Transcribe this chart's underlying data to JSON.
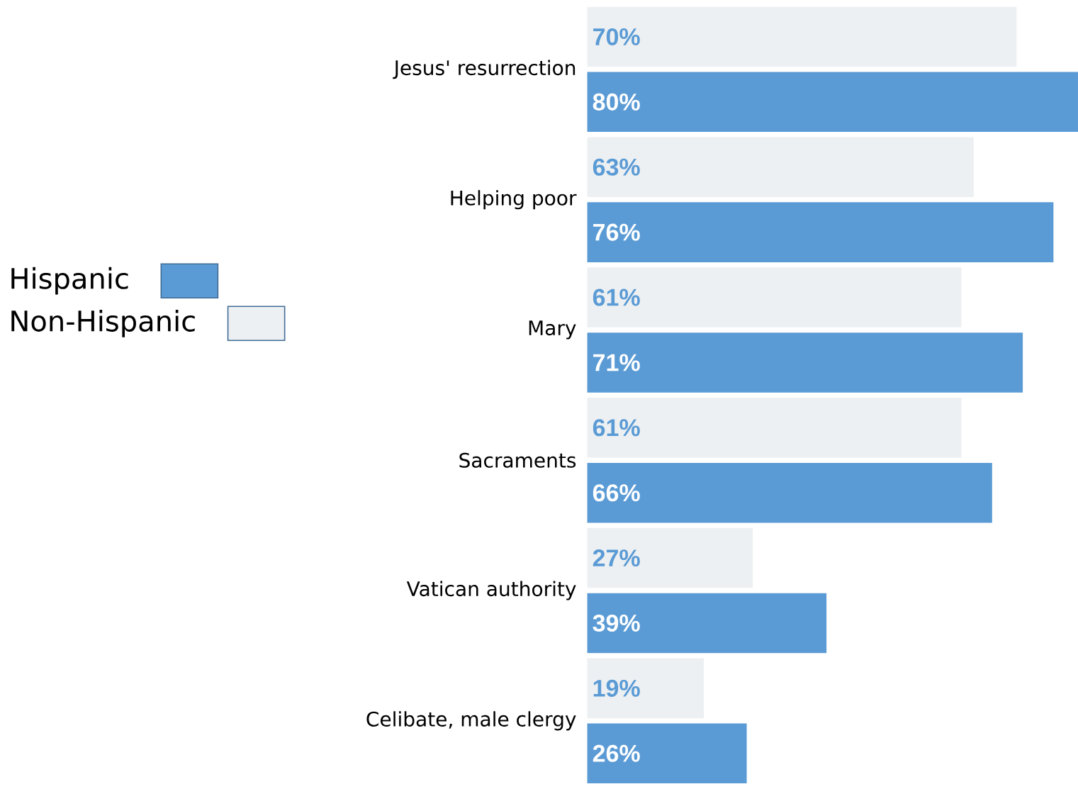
{
  "chart_data": {
    "type": "bar",
    "orientation": "horizontal",
    "categories": [
      "Jesus' resurrection",
      "Helping poor",
      "Mary",
      "Sacraments",
      "Vatican authority",
      "Celibate, male clergy"
    ],
    "series": [
      {
        "name": "Hispanic",
        "color": "#5b9bd5",
        "values": [
          80,
          76,
          71,
          66,
          39,
          26
        ],
        "value_labels": [
          "80%",
          "76%",
          "71%",
          "66%",
          "39%",
          "26%"
        ]
      },
      {
        "name": "Non-Hispanic",
        "color": "#edf0f2",
        "values": [
          70,
          63,
          61,
          61,
          27,
          19
        ],
        "value_labels": [
          "70%",
          "63%",
          "61%",
          "61%",
          "27%",
          "19%"
        ]
      }
    ],
    "legend": "left",
    "tick_labels": "y"
  }
}
